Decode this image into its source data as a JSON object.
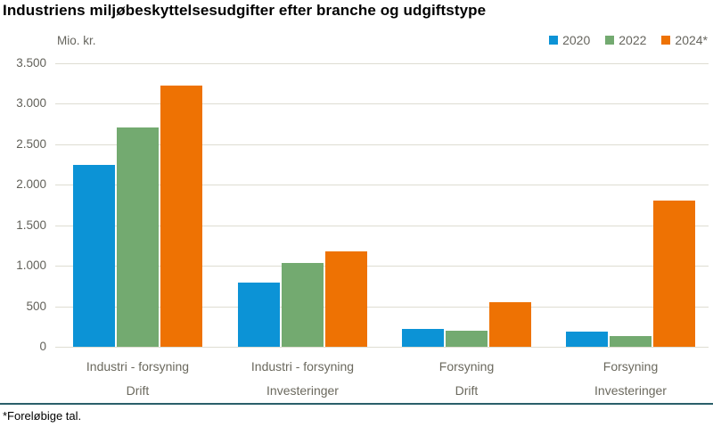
{
  "title": "Industriens miljøbeskyttelsesudgifter efter branche og udgiftstype",
  "y_axis_unit": "Mio. kr.",
  "footnote": "*Foreløbige tal.",
  "colors": {
    "series_2020": "#0c93d6",
    "series_2022": "#73aa70",
    "series_2024": "#ee7203",
    "gridline": "#deddd2",
    "separator_line": "#2a5f6a",
    "label_text": "#6b695e"
  },
  "chart_data": {
    "type": "bar",
    "title": "Industriens miljøbeskyttelsesudgifter efter branche og udgiftstype",
    "xlabel": "",
    "ylabel": "Mio. kr.",
    "ylim": [
      0,
      3500
    ],
    "grid": true,
    "legend_position": "top-right",
    "yticks": [
      {
        "value": 3500,
        "label": "3.500"
      },
      {
        "value": 3000,
        "label": "3.000"
      },
      {
        "value": 2500,
        "label": "2.500"
      },
      {
        "value": 2000,
        "label": "2.000"
      },
      {
        "value": 1500,
        "label": "1.500"
      },
      {
        "value": 1000,
        "label": "1.000"
      },
      {
        "value": 500,
        "label": "500"
      },
      {
        "value": 0,
        "label": "0"
      }
    ],
    "categories": [
      {
        "line1": "Industri - forsyning",
        "line2": "Drift"
      },
      {
        "line1": "Industri - forsyning",
        "line2": "Investeringer"
      },
      {
        "line1": "Forsyning",
        "line2": "Drift"
      },
      {
        "line1": "Forsyning",
        "line2": "Investeringer"
      }
    ],
    "series": [
      {
        "name": "2020",
        "color": "#0c93d6",
        "values": [
          2240,
          790,
          225,
          190
        ]
      },
      {
        "name": "2022",
        "color": "#73aa70",
        "values": [
          2710,
          1040,
          200,
          130
        ]
      },
      {
        "name": "2024*",
        "color": "#ee7203",
        "values": [
          3220,
          1180,
          555,
          1800
        ]
      }
    ]
  }
}
